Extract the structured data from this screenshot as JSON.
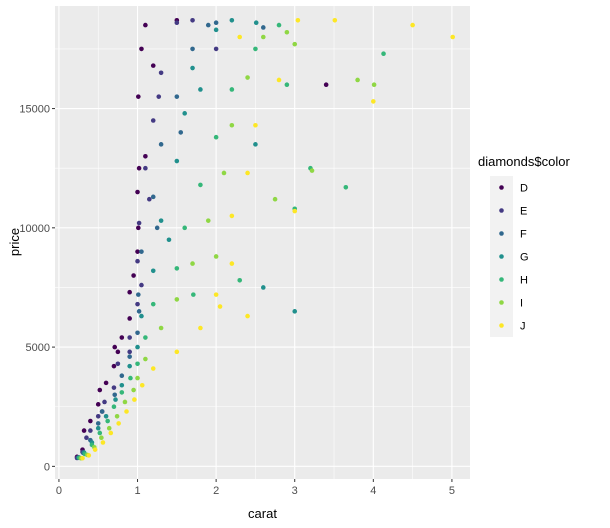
{
  "chart_data": {
    "type": "scatter",
    "title": "",
    "xlabel": "carat",
    "ylabel": "price",
    "xlim": [
      -0.05,
      5.23
    ],
    "ylim": [
      -530,
      19300
    ],
    "x_ticks": [
      0,
      1,
      2,
      3,
      4,
      5
    ],
    "x_tick_labels": [
      "0",
      "1",
      "2",
      "3",
      "4",
      "5"
    ],
    "y_ticks": [
      0,
      5000,
      10000,
      15000
    ],
    "y_tick_labels": [
      "0",
      "5000",
      "10000",
      "15000"
    ],
    "grid": true,
    "legend": {
      "title": "diamonds$color",
      "position": "right",
      "entries": [
        "D",
        "E",
        "F",
        "G",
        "H",
        "I",
        "J"
      ]
    },
    "series": [
      {
        "name": "D",
        "color": "#440154",
        "points": [
          [
            0.23,
            400
          ],
          [
            0.3,
            700
          ],
          [
            0.32,
            1500
          ],
          [
            0.4,
            1900
          ],
          [
            0.5,
            2600
          ],
          [
            0.52,
            3200
          ],
          [
            0.6,
            3500
          ],
          [
            0.7,
            4200
          ],
          [
            0.71,
            5000
          ],
          [
            0.8,
            5400
          ],
          [
            0.9,
            6200
          ],
          [
            0.9,
            7300
          ],
          [
            1.0,
            9000
          ],
          [
            1.0,
            11500
          ],
          [
            1.01,
            15500
          ],
          [
            1.05,
            17500
          ],
          [
            1.1,
            18500
          ],
          [
            1.2,
            16800
          ],
          [
            1.02,
            12500
          ],
          [
            0.95,
            8000
          ],
          [
            1.1,
            13000
          ],
          [
            1.01,
            10000
          ],
          [
            3.4,
            16000
          ],
          [
            1.5,
            18700
          ],
          [
            0.75,
            4800
          ],
          [
            0.55,
            2300
          ]
        ]
      },
      {
        "name": "E",
        "color": "#443a83",
        "points": [
          [
            0.23,
            350
          ],
          [
            0.3,
            600
          ],
          [
            0.35,
            1200
          ],
          [
            0.4,
            1500
          ],
          [
            0.5,
            2100
          ],
          [
            0.58,
            2700
          ],
          [
            0.7,
            3300
          ],
          [
            0.75,
            4300
          ],
          [
            0.9,
            5400
          ],
          [
            1.0,
            6800
          ],
          [
            1.0,
            8600
          ],
          [
            1.02,
            10200
          ],
          [
            1.1,
            12500
          ],
          [
            1.2,
            14500
          ],
          [
            1.3,
            16500
          ],
          [
            1.5,
            18600
          ],
          [
            1.27,
            15500
          ],
          [
            1.7,
            18700
          ],
          [
            2.0,
            17500
          ],
          [
            0.9,
            4800
          ],
          [
            1.05,
            7600
          ],
          [
            1.15,
            11200
          ]
        ]
      },
      {
        "name": "F",
        "color": "#31688e",
        "points": [
          [
            0.25,
            380
          ],
          [
            0.31,
            560
          ],
          [
            0.4,
            1100
          ],
          [
            0.5,
            1800
          ],
          [
            0.55,
            2300
          ],
          [
            0.71,
            3000
          ],
          [
            0.8,
            3800
          ],
          [
            0.9,
            4600
          ],
          [
            1.0,
            5600
          ],
          [
            1.01,
            7200
          ],
          [
            1.05,
            9000
          ],
          [
            1.2,
            11300
          ],
          [
            1.3,
            13500
          ],
          [
            1.5,
            15500
          ],
          [
            1.7,
            17500
          ],
          [
            1.9,
            18500
          ],
          [
            2.0,
            18600
          ],
          [
            1.02,
            6500
          ],
          [
            1.25,
            10000
          ],
          [
            2.6,
            18400
          ],
          [
            1.55,
            14000
          ]
        ]
      },
      {
        "name": "G",
        "color": "#21908d",
        "points": [
          [
            0.25,
            360
          ],
          [
            0.32,
            580
          ],
          [
            0.42,
            1000
          ],
          [
            0.5,
            1600
          ],
          [
            0.6,
            2100
          ],
          [
            0.72,
            2800
          ],
          [
            0.8,
            3400
          ],
          [
            0.9,
            4200
          ],
          [
            1.0,
            5000
          ],
          [
            1.05,
            6300
          ],
          [
            1.2,
            8200
          ],
          [
            1.3,
            10300
          ],
          [
            1.5,
            12800
          ],
          [
            1.6,
            14800
          ],
          [
            1.7,
            16700
          ],
          [
            2.0,
            18300
          ],
          [
            2.2,
            18700
          ],
          [
            2.5,
            13500
          ],
          [
            2.6,
            7500
          ],
          [
            3.0,
            6500
          ],
          [
            2.51,
            18600
          ],
          [
            1.8,
            15800
          ],
          [
            1.4,
            9500
          ]
        ]
      },
      {
        "name": "H",
        "color": "#35b779",
        "points": [
          [
            0.26,
            360
          ],
          [
            0.33,
            520
          ],
          [
            0.42,
            900
          ],
          [
            0.52,
            1400
          ],
          [
            0.62,
            1900
          ],
          [
            0.7,
            2500
          ],
          [
            0.8,
            3100
          ],
          [
            0.91,
            3700
          ],
          [
            1.0,
            4300
          ],
          [
            1.1,
            5400
          ],
          [
            1.2,
            6800
          ],
          [
            1.5,
            8300
          ],
          [
            1.6,
            10000
          ],
          [
            1.8,
            11800
          ],
          [
            2.0,
            13800
          ],
          [
            2.2,
            15800
          ],
          [
            2.5,
            17500
          ],
          [
            2.8,
            18500
          ],
          [
            3.2,
            12500
          ],
          [
            3.65,
            11700
          ],
          [
            4.13,
            17300
          ],
          [
            2.3,
            7800
          ],
          [
            1.71,
            7200
          ],
          [
            2.9,
            16000
          ],
          [
            3.0,
            10800
          ]
        ]
      },
      {
        "name": "I",
        "color": "#8fd744",
        "points": [
          [
            0.28,
            340
          ],
          [
            0.36,
            480
          ],
          [
            0.45,
            800
          ],
          [
            0.54,
            1200
          ],
          [
            0.64,
            1600
          ],
          [
            0.74,
            2100
          ],
          [
            0.84,
            2700
          ],
          [
            0.95,
            3200
          ],
          [
            1.0,
            3700
          ],
          [
            1.1,
            4500
          ],
          [
            1.3,
            5800
          ],
          [
            1.5,
            7000
          ],
          [
            1.7,
            8500
          ],
          [
            1.9,
            10300
          ],
          [
            2.1,
            12300
          ],
          [
            2.2,
            14300
          ],
          [
            2.4,
            16300
          ],
          [
            2.6,
            18000
          ],
          [
            3.0,
            17700
          ],
          [
            3.8,
            16200
          ],
          [
            4.01,
            16000
          ],
          [
            3.22,
            12400
          ],
          [
            2.75,
            11200
          ],
          [
            2.0,
            8800
          ],
          [
            2.9,
            18200
          ]
        ]
      },
      {
        "name": "J",
        "color": "#fde725",
        "points": [
          [
            0.3,
            340
          ],
          [
            0.38,
            460
          ],
          [
            0.46,
            700
          ],
          [
            0.56,
            1000
          ],
          [
            0.66,
            1400
          ],
          [
            0.76,
            1800
          ],
          [
            0.86,
            2300
          ],
          [
            0.96,
            2800
          ],
          [
            1.06,
            3400
          ],
          [
            1.2,
            4100
          ],
          [
            1.5,
            4800
          ],
          [
            1.8,
            5800
          ],
          [
            2.0,
            7200
          ],
          [
            2.2,
            8500
          ],
          [
            2.2,
            10500
          ],
          [
            2.4,
            12300
          ],
          [
            2.5,
            14300
          ],
          [
            2.8,
            16200
          ],
          [
            2.3,
            18000
          ],
          [
            3.04,
            18700
          ],
          [
            3.51,
            18700
          ],
          [
            4.5,
            18500
          ],
          [
            5.01,
            18000
          ],
          [
            4.0,
            15300
          ],
          [
            3.0,
            10700
          ],
          [
            2.4,
            6300
          ],
          [
            2.05,
            6700
          ]
        ]
      }
    ]
  }
}
